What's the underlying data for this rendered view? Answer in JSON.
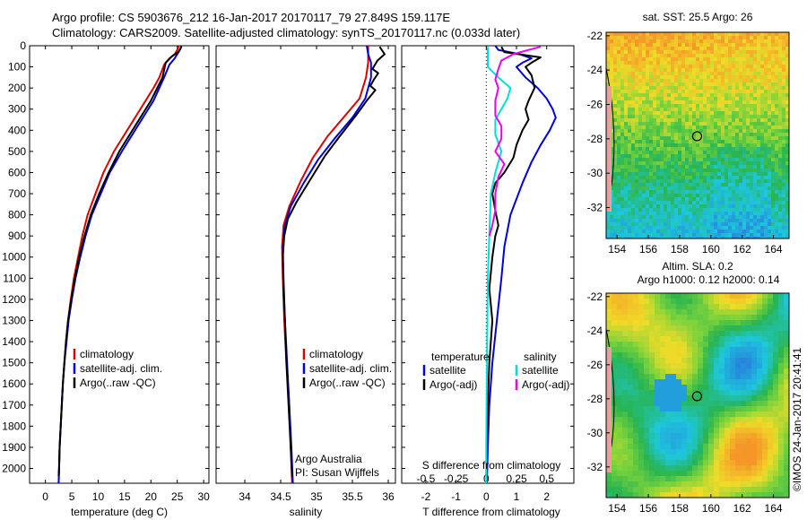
{
  "header": {
    "line1": "Argo profile: CS 5903676_212 16-Jan-2017 20170117_79 27.849S 159.117E",
    "line2": "Climatology: CARS2009. Satellite-adjusted climatology: synTS_20170117.nc (0.033d later)"
  },
  "watermark": "©IMOS 24-Jan-2017 20:41:41",
  "colors": {
    "climatology": "#dd0000",
    "satellite": "#0000dd",
    "argo": "#000000",
    "salinity_satellite": "#00dddd",
    "salinity_argo": "#ee00ee"
  },
  "chart_data": [
    {
      "type": "line",
      "id": "temperature",
      "xlabel": "temperature (deg C)",
      "xlim": [
        -3,
        31
      ],
      "ylim": [
        2070,
        0
      ],
      "xticks": [
        0,
        5,
        10,
        15,
        20,
        25,
        30
      ],
      "yticks": [
        0,
        100,
        200,
        300,
        400,
        500,
        600,
        700,
        800,
        900,
        1000,
        1100,
        1200,
        1300,
        1400,
        1500,
        1600,
        1700,
        1800,
        1900,
        2000
      ],
      "legend": [
        "climatology",
        "satellite-adj. clim.",
        "Argo(..raw -QC)"
      ],
      "series": [
        {
          "name": "climatology",
          "color": "#dd0000",
          "points": [
            [
              25.3,
              0
            ],
            [
              25,
              20
            ],
            [
              24.5,
              40
            ],
            [
              23.5,
              60
            ],
            [
              22.5,
              90
            ],
            [
              21.6,
              150
            ],
            [
              20.5,
              200
            ],
            [
              19,
              260
            ],
            [
              17.5,
              320
            ],
            [
              15.5,
              400
            ],
            [
              13,
              500
            ],
            [
              11,
              600
            ],
            [
              9.5,
              700
            ],
            [
              8,
              800
            ],
            [
              7,
              900
            ],
            [
              6.2,
              1000
            ],
            [
              5.4,
              1100
            ],
            [
              4.8,
              1200
            ],
            [
              4.3,
              1300
            ],
            [
              3.9,
              1400
            ],
            [
              3.6,
              1500
            ],
            [
              3.3,
              1600
            ],
            [
              3.1,
              1700
            ],
            [
              2.9,
              1800
            ],
            [
              2.7,
              1900
            ],
            [
              2.6,
              2000
            ],
            [
              2.5,
              2070
            ]
          ]
        },
        {
          "name": "satellite-adj. clim.",
          "color": "#0000dd",
          "points": [
            [
              25.8,
              0
            ],
            [
              25.5,
              20
            ],
            [
              25,
              40
            ],
            [
              24.5,
              60
            ],
            [
              23.5,
              90
            ],
            [
              22.5,
              150
            ],
            [
              21.6,
              200
            ],
            [
              20.5,
              260
            ],
            [
              19,
              320
            ],
            [
              17,
              400
            ],
            [
              14.5,
              500
            ],
            [
              12.2,
              600
            ],
            [
              10.5,
              700
            ],
            [
              8.8,
              800
            ],
            [
              7.6,
              900
            ],
            [
              6.6,
              1000
            ],
            [
              5.7,
              1100
            ],
            [
              5,
              1200
            ],
            [
              4.4,
              1300
            ],
            [
              4,
              1400
            ],
            [
              3.6,
              1500
            ],
            [
              3.3,
              1600
            ],
            [
              3.1,
              1700
            ],
            [
              2.9,
              1800
            ],
            [
              2.7,
              1900
            ],
            [
              2.6,
              2000
            ],
            [
              2.5,
              2070
            ]
          ]
        },
        {
          "name": "Argo(..raw -QC)",
          "color": "#000000",
          "points": [
            [
              25.8,
              5
            ],
            [
              25.2,
              30
            ],
            [
              24,
              50
            ],
            [
              22.8,
              80
            ],
            [
              22.2,
              150
            ],
            [
              21.2,
              200
            ],
            [
              20,
              260
            ],
            [
              18.5,
              320
            ],
            [
              16.5,
              400
            ],
            [
              14,
              500
            ],
            [
              12,
              600
            ],
            [
              10.2,
              700
            ],
            [
              8.6,
              800
            ],
            [
              7.4,
              900
            ],
            [
              6.4,
              1000
            ],
            [
              5.6,
              1100
            ],
            [
              4.9,
              1200
            ],
            [
              4.3,
              1300
            ],
            [
              3.9,
              1400
            ],
            [
              3.6,
              1500
            ],
            [
              3.3,
              1600
            ],
            [
              3.1,
              1700
            ],
            [
              2.9,
              1800
            ],
            [
              2.7,
              1900
            ],
            [
              2.6,
              2000
            ],
            [
              2.5,
              2035
            ]
          ]
        }
      ]
    },
    {
      "type": "line",
      "id": "salinity",
      "xlabel": "salinity",
      "xlim": [
        33.6,
        36.1
      ],
      "ylim": [
        2070,
        0
      ],
      "xticks": [
        34,
        34.5,
        35,
        35.5,
        36
      ],
      "legend": [
        "climatology",
        "satellite-adj. clim.",
        "Argo(..raw -QC)"
      ],
      "annotation": [
        "Argo Australia",
        "PI: Susan Wijffels"
      ],
      "series": [
        {
          "name": "climatology",
          "color": "#dd0000",
          "points": [
            [
              35.72,
              0
            ],
            [
              35.72,
              40
            ],
            [
              35.72,
              80
            ],
            [
              35.69,
              150
            ],
            [
              35.6,
              250
            ],
            [
              35.4,
              330
            ],
            [
              35.15,
              430
            ],
            [
              34.95,
              530
            ],
            [
              34.78,
              640
            ],
            [
              34.62,
              760
            ],
            [
              34.54,
              850
            ],
            [
              34.52,
              950
            ],
            [
              34.53,
              1100
            ],
            [
              34.55,
              1300
            ],
            [
              34.58,
              1500
            ],
            [
              34.62,
              1700
            ],
            [
              34.64,
              1900
            ],
            [
              34.66,
              2070
            ]
          ]
        },
        {
          "name": "satellite-adj. clim.",
          "color": "#0000dd",
          "points": [
            [
              35.7,
              0
            ],
            [
              35.72,
              40
            ],
            [
              35.76,
              80
            ],
            [
              35.76,
              150
            ],
            [
              35.68,
              250
            ],
            [
              35.5,
              340
            ],
            [
              35.25,
              440
            ],
            [
              35.02,
              540
            ],
            [
              34.82,
              650
            ],
            [
              34.64,
              760
            ],
            [
              34.56,
              850
            ],
            [
              34.53,
              950
            ],
            [
              34.54,
              1100
            ],
            [
              34.56,
              1300
            ],
            [
              34.59,
              1500
            ],
            [
              34.62,
              1700
            ],
            [
              34.65,
              1900
            ],
            [
              34.67,
              2070
            ]
          ]
        },
        {
          "name": "Argo(..raw -QC)",
          "color": "#000000",
          "points": [
            [
              35.88,
              5
            ],
            [
              35.95,
              40
            ],
            [
              35.85,
              70
            ],
            [
              35.78,
              110
            ],
            [
              35.86,
              130
            ],
            [
              35.8,
              160
            ],
            [
              35.75,
              190
            ],
            [
              35.82,
              210
            ],
            [
              35.7,
              260
            ],
            [
              35.55,
              330
            ],
            [
              35.32,
              430
            ],
            [
              35.12,
              520
            ],
            [
              34.92,
              630
            ],
            [
              34.72,
              740
            ],
            [
              34.6,
              820
            ],
            [
              34.55,
              900
            ],
            [
              34.53,
              1000
            ],
            [
              34.54,
              1150
            ],
            [
              34.56,
              1300
            ],
            [
              34.58,
              1500
            ],
            [
              34.61,
              1700
            ],
            [
              34.64,
              1900
            ],
            [
              34.66,
              2040
            ]
          ]
        }
      ]
    },
    {
      "type": "line",
      "id": "difference",
      "xlabel": "T difference from climatology",
      "xlabel_top": "S difference from climatology",
      "xlim": [
        -2.8,
        2.9
      ],
      "ylim": [
        2070,
        0
      ],
      "xticks": [
        -2,
        -1,
        0,
        1,
        2
      ],
      "xticks_top": [
        "-0.5",
        "-0.25",
        "0",
        "0.25",
        "0.5"
      ],
      "legend": {
        "temperature": "temperature",
        "salinity": "salinity",
        "satellite": "satellite",
        "argo": "Argo(-adj)"
      },
      "series": [
        {
          "name": "temperature satellite",
          "color": "#0000dd",
          "points": [
            [
              0.3,
              0
            ],
            [
              0.4,
              20
            ],
            [
              1.1,
              40
            ],
            [
              1.5,
              60
            ],
            [
              1.2,
              80
            ],
            [
              1.0,
              100
            ],
            [
              1.3,
              150
            ],
            [
              1.7,
              200
            ],
            [
              2.0,
              250
            ],
            [
              2.2,
              300
            ],
            [
              2.3,
              340
            ],
            [
              2.1,
              400
            ],
            [
              1.8,
              470
            ],
            [
              1.5,
              550
            ],
            [
              1.2,
              650
            ],
            [
              0.8,
              800
            ],
            [
              0.6,
              950
            ],
            [
              0.5,
              1100
            ],
            [
              0.35,
              1300
            ],
            [
              0.2,
              1500
            ],
            [
              0.1,
              1700
            ],
            [
              0.05,
              1900
            ],
            [
              0.02,
              2070
            ]
          ]
        },
        {
          "name": "temperature Argo(-adj)",
          "color": "#000000",
          "points": [
            [
              0.5,
              5
            ],
            [
              0.6,
              30
            ],
            [
              1.8,
              55
            ],
            [
              1.5,
              80
            ],
            [
              1.3,
              100
            ],
            [
              1.5,
              140
            ],
            [
              1.6,
              200
            ],
            [
              1.4,
              260
            ],
            [
              1.3,
              300
            ],
            [
              1.4,
              350
            ],
            [
              1.2,
              400
            ],
            [
              1.0,
              470
            ],
            [
              0.9,
              530
            ],
            [
              0.6,
              600
            ],
            [
              0.3,
              650
            ],
            [
              0.2,
              700
            ],
            [
              0.3,
              780
            ],
            [
              0.4,
              850
            ],
            [
              0.3,
              900
            ],
            [
              0.2,
              1000
            ],
            [
              0.1,
              1150
            ],
            [
              0.2,
              1300
            ],
            [
              0.1,
              1500
            ],
            [
              0.05,
              1700
            ],
            [
              0.02,
              1900
            ],
            [
              0.0,
              2035
            ]
          ]
        },
        {
          "name": "salinity satellite",
          "color": "#00dddd",
          "points": [
            [
              0.05,
              5
            ],
            [
              0.05,
              100
            ],
            [
              0.4,
              150
            ],
            [
              0.8,
              200
            ],
            [
              0.7,
              250
            ],
            [
              0.5,
              300
            ],
            [
              0.3,
              350
            ],
            [
              0.3,
              420
            ],
            [
              0.5,
              500
            ],
            [
              0.3,
              600
            ],
            [
              0.15,
              700
            ],
            [
              0.1,
              900
            ],
            [
              0.05,
              1100
            ],
            [
              0.03,
              1400
            ],
            [
              0.01,
              1700
            ],
            [
              0.0,
              1900
            ],
            [
              0.0,
              2070
            ]
          ]
        },
        {
          "name": "salinity Argo(-adj)",
          "color": "#ee00ee",
          "points": [
            [
              1.8,
              5
            ],
            [
              1.4,
              20
            ],
            [
              0.9,
              40
            ],
            [
              0.5,
              70
            ],
            [
              0.4,
              110
            ],
            [
              0.3,
              160
            ],
            [
              0.4,
              200
            ],
            [
              0.3,
              260
            ],
            [
              0.3,
              330
            ],
            [
              0.5,
              380
            ],
            [
              0.5,
              440
            ],
            [
              0.3,
              500
            ],
            [
              0.6,
              560
            ],
            [
              0.4,
              620
            ],
            [
              0.3,
              700
            ],
            [
              0.3,
              780
            ],
            [
              0.2,
              850
            ],
            [
              0.1,
              900
            ]
          ]
        }
      ]
    },
    {
      "type": "heatmap",
      "id": "sst_map",
      "title": "sat. SST: 25.5 Argo: 26",
      "xticks": [
        154,
        156,
        158,
        160,
        162,
        164
      ],
      "yticks": [
        -22,
        -24,
        -26,
        -28,
        -30,
        -32
      ],
      "xlim": [
        153.3,
        165
      ],
      "ylim": [
        -33.8,
        -21.8
      ],
      "marker": [
        159.117,
        -27.849
      ]
    },
    {
      "type": "heatmap",
      "id": "sla_map",
      "title_line1": "Altim. SLA: 0.2",
      "title_line2": "Argo h1000: 0.12 h2000: 0.14",
      "xticks": [
        154,
        156,
        158,
        160,
        162,
        164
      ],
      "yticks": [
        -22,
        -24,
        -26,
        -28,
        -30,
        -32
      ],
      "xlim": [
        153.3,
        165
      ],
      "ylim": [
        -33.8,
        -21.8
      ],
      "marker": [
        159.117,
        -27.849
      ]
    }
  ]
}
